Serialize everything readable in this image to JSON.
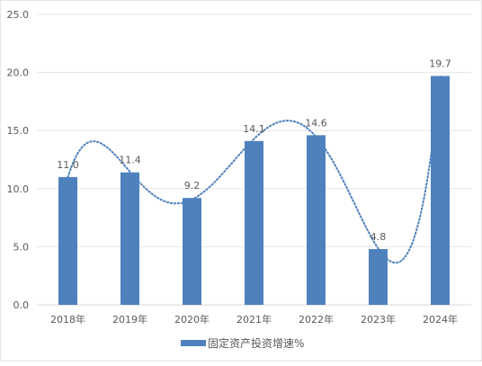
{
  "chart_data": {
    "type": "bar",
    "categories": [
      "2018年",
      "2019年",
      "2020年",
      "2021年",
      "2022年",
      "2023年",
      "2024年"
    ],
    "series": [
      {
        "name": "固定资产投资增速%",
        "values": [
          11.0,
          11.4,
          9.2,
          14.1,
          14.6,
          4.8,
          19.7
        ],
        "labels": [
          "11.0",
          "11.4",
          "9.2",
          "14.1",
          "14.6",
          "4.8",
          "19.7"
        ],
        "color": "#4f81bd"
      }
    ],
    "y_ticks": [
      "0.0",
      "5.0",
      "10.0",
      "15.0",
      "20.0",
      "25.0"
    ],
    "ylim": [
      0,
      25
    ],
    "grid": "horizontal",
    "legend": "bottom",
    "trendline": {
      "style": "dotted",
      "type": "polynomial",
      "color": "#4f81bd"
    },
    "colors": {
      "axis": "#d9d9d9",
      "grid": "#e6e6e6",
      "text": "#595959"
    }
  }
}
